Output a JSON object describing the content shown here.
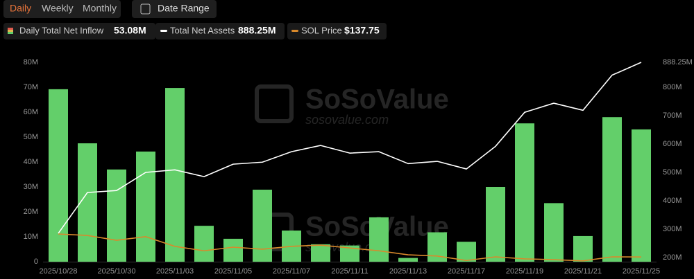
{
  "toolbar": {
    "periods": [
      "Daily",
      "Weekly",
      "Monthly"
    ],
    "active": "Daily",
    "date_range": "Date Range"
  },
  "legend": [
    {
      "name": "Daily Total Net Inflow",
      "value": "53.08M"
    },
    {
      "name": "Total Net Assets",
      "value": "888.25M"
    },
    {
      "name": "SOL Price",
      "value": "$137.75"
    }
  ],
  "watermark": [
    "SoSoValue",
    "sosovalue.com"
  ],
  "chart_data": {
    "type": "bar",
    "categories": [
      "2025/10/28",
      null,
      "2025/10/30",
      null,
      "2025/11/03",
      null,
      "2025/11/05",
      null,
      "2025/11/07",
      null,
      "2025/11/11",
      null,
      "2025/11/13",
      null,
      "2025/11/17",
      null,
      "2025/11/19",
      null,
      "2025/11/21",
      null,
      "2025/11/25"
    ],
    "ylim": [
      0,
      80
    ],
    "yticks": [
      0,
      {
        "value": 10,
        "label": "10M"
      },
      {
        "value": 20,
        "label": "20M"
      },
      {
        "value": 30,
        "label": "30M"
      },
      {
        "value": 40,
        "label": "40M"
      },
      {
        "value": 50,
        "label": "50M"
      },
      {
        "value": 60,
        "label": "60M"
      },
      {
        "value": 70,
        "label": "70M"
      },
      {
        "value": 80,
        "label": "80M"
      }
    ],
    "y2lim": [
      185,
      888.25
    ],
    "y2ticks": [
      {
        "value": 200,
        "label": "200M"
      },
      {
        "value": 300,
        "label": "300M"
      },
      {
        "value": 400,
        "label": "400M"
      },
      {
        "value": 500,
        "label": "500M"
      },
      {
        "value": 600,
        "label": "600M"
      },
      {
        "value": 700,
        "label": "700M"
      },
      {
        "value": 800,
        "label": "800M"
      },
      {
        "value": 888.25,
        "label": "888.25M"
      }
    ],
    "y3lim": [
      126,
      620
    ],
    "series": [
      {
        "name": "Daily Total Net Inflow",
        "type": "bar",
        "axis": "y",
        "color": "#63cf6a",
        "values": [
          69.2,
          47.5,
          37,
          44.2,
          69.7,
          14.4,
          9.2,
          28.9,
          12.5,
          7,
          6.5,
          17.8,
          1.5,
          11.8,
          8,
          30,
          55.5,
          23.5,
          10.3,
          58,
          53.08
        ]
      },
      {
        "name": "Total Net Assets",
        "type": "line",
        "axis": "y2",
        "color": "#ffffff",
        "values": [
          285,
          429,
          436,
          500,
          509,
          485,
          529,
          536,
          573,
          595,
          568,
          573,
          531,
          539,
          512,
          592,
          712,
          744,
          719,
          843,
          888.25
        ]
      },
      {
        "name": "SOL Price",
        "type": "line",
        "axis": "y3",
        "color": "#d9892b",
        "values": [
          194.6,
          191,
          179,
          188,
          164,
          153,
          162,
          157,
          164,
          167,
          160,
          153,
          143,
          140,
          129,
          138,
          133,
          131,
          128,
          138,
          137.75
        ]
      }
    ]
  }
}
